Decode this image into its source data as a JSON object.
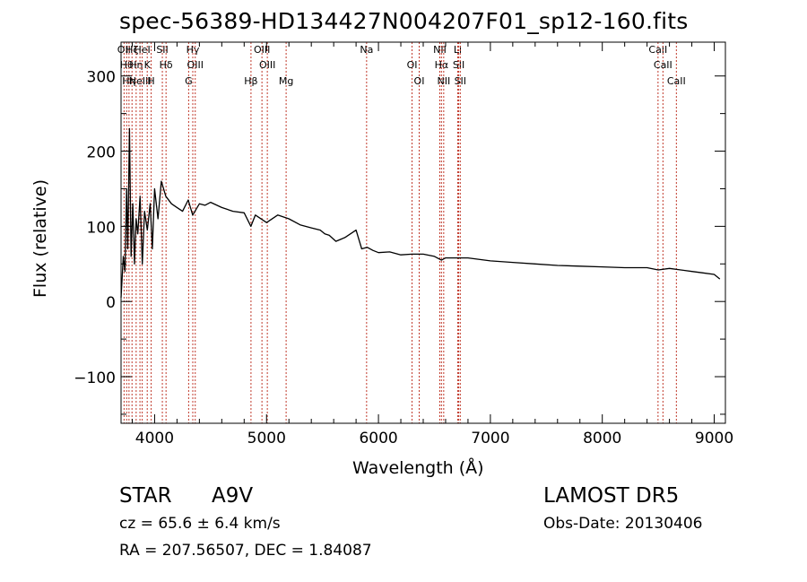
{
  "page": {
    "title": "spec-56389-HD134427N004207F01_sp12-160.fits",
    "object_class": "STAR",
    "subclass": "A9V",
    "survey": "LAMOST DR5",
    "cz_text": "cz = 65.6 ± 6.4 km/s",
    "obs_date_text": "Obs-Date: 20130406",
    "radec_text": "RA = 207.56507, DEC =   1.84087"
  },
  "chart_data": {
    "type": "line",
    "title": "spec-56389-HD134427N004207F01_sp12-160.fits",
    "xlabel": "Wavelength (Å)",
    "ylabel": "Flux (relative)",
    "xlim": [
      3700,
      9100
    ],
    "ylim": [
      -162,
      345
    ],
    "x_ticks": [
      4000,
      5000,
      6000,
      7000,
      8000,
      9000
    ],
    "y_ticks": [
      -100,
      0,
      100,
      200,
      300
    ],
    "x_tick_labels": [
      "4000",
      "5000",
      "6000",
      "7000",
      "8000",
      "9000"
    ],
    "y_tick_labels": [
      "−100",
      "0",
      "100",
      "200",
      "300"
    ],
    "grid": false,
    "line_color": "#000000",
    "marker_color": "#c0392b",
    "series": [
      {
        "x": [
          3700,
          3720,
          3735,
          3750,
          3760,
          3775,
          3790,
          3805,
          3820,
          3835,
          3850,
          3870,
          3890,
          3910,
          3935,
          3960,
          3980,
          4000,
          4030,
          4060,
          4100,
          4150,
          4200,
          4250,
          4300,
          4340,
          4400,
          4450,
          4500,
          4600,
          4700,
          4800,
          4860,
          4900,
          5000,
          5100,
          5200,
          5300,
          5400,
          5480,
          5520,
          5560,
          5620,
          5700,
          5800,
          5850,
          5900,
          5950,
          6000,
          6100,
          6200,
          6300,
          6400,
          6500,
          6563,
          6600,
          6700,
          6800,
          7000,
          7200,
          7400,
          7600,
          7800,
          8000,
          8200,
          8400,
          8500,
          8600,
          8700,
          8800,
          8900,
          9000,
          9050
        ],
        "y": [
          5,
          60,
          40,
          150,
          70,
          230,
          60,
          130,
          50,
          110,
          90,
          140,
          50,
          120,
          95,
          130,
          70,
          150,
          110,
          160,
          140,
          130,
          125,
          120,
          135,
          115,
          130,
          128,
          132,
          125,
          120,
          118,
          100,
          115,
          105,
          115,
          110,
          102,
          98,
          95,
          90,
          88,
          80,
          85,
          95,
          70,
          72,
          68,
          65,
          66,
          62,
          63,
          63,
          60,
          55,
          58,
          58,
          58,
          54,
          52,
          50,
          48,
          47,
          46,
          45,
          45,
          42,
          44,
          42,
          40,
          38,
          36,
          30
        ]
      }
    ],
    "line_markers": [
      {
        "w": 3727,
        "label": "OII"
      },
      {
        "w": 3750,
        "label": "Hθ"
      },
      {
        "w": 3771,
        "label": "Hη"
      },
      {
        "w": 3798,
        "label": "Hζ"
      },
      {
        "w": 3835,
        "label": "Hη"
      },
      {
        "w": 3869,
        "label": "NeIII"
      },
      {
        "w": 3889,
        "label": "HeI"
      },
      {
        "w": 3934,
        "label": "K"
      },
      {
        "w": 3969,
        "label": "H"
      },
      {
        "w": 4069,
        "label": "SII"
      },
      {
        "w": 4102,
        "label": "Hδ"
      },
      {
        "w": 4304,
        "label": "G"
      },
      {
        "w": 4341,
        "label": "Hγ"
      },
      {
        "w": 4363,
        "label": "OIII"
      },
      {
        "w": 4861,
        "label": "Hβ"
      },
      {
        "w": 4959,
        "label": "OIII"
      },
      {
        "w": 5007,
        "label": "OIII"
      },
      {
        "w": 5175,
        "label": "Mg"
      },
      {
        "w": 5894,
        "label": "Na"
      },
      {
        "w": 6300,
        "label": "OI"
      },
      {
        "w": 6364,
        "label": "OI"
      },
      {
        "w": 6548,
        "label": "NII"
      },
      {
        "w": 6563,
        "label": "Hα"
      },
      {
        "w": 6583,
        "label": "NII"
      },
      {
        "w": 6708,
        "label": "Li"
      },
      {
        "w": 6717,
        "label": "SII"
      },
      {
        "w": 6731,
        "label": "SII"
      },
      {
        "w": 8498,
        "label": "CaII"
      },
      {
        "w": 8542,
        "label": "CaII"
      },
      {
        "w": 8662,
        "label": "CaII"
      }
    ]
  }
}
